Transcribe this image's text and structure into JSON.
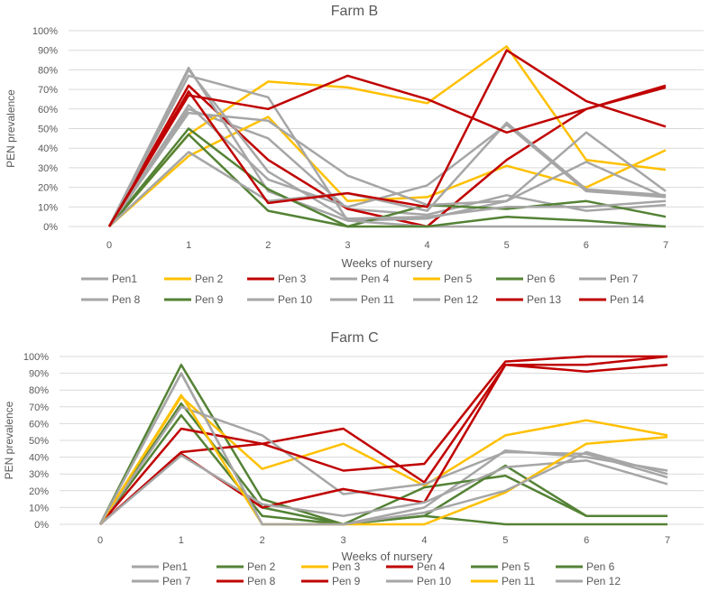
{
  "colors": {
    "grey": "#a6a6a6",
    "gold": "#ffc000",
    "red": "#c00000",
    "green": "#548235",
    "grid": "#d9d9d9",
    "text": "#595959"
  },
  "chart_data": [
    {
      "type": "line",
      "title": "Farm B",
      "xlabel": "Weeks of nursery",
      "ylabel": "PEN prevalence",
      "x": [
        0,
        1,
        2,
        3,
        4,
        5,
        6,
        7
      ],
      "ylim": [
        0,
        100
      ],
      "yticks": [
        "0%",
        "10%",
        "20%",
        "30%",
        "40%",
        "50%",
        "60%",
        "70%",
        "80%",
        "90%",
        "100%"
      ],
      "legend_position": "bottom",
      "legend_rows": [
        7,
        7
      ],
      "series": [
        {
          "name": "Pen1",
          "color": "grey",
          "values": [
            0,
            60,
            45,
            9,
            6,
            16,
            8,
            11
          ]
        },
        {
          "name": "Pen 2",
          "color": "gold",
          "values": [
            0,
            36,
            56,
            13,
            15,
            31,
            20,
            39
          ]
        },
        {
          "name": "Pen 3",
          "color": "red",
          "values": [
            0,
            72,
            34,
            9,
            0,
            34,
            60,
            72
          ]
        },
        {
          "name": "Pen 4",
          "color": "grey",
          "values": [
            0,
            81,
            18,
            3,
            4,
            13,
            33,
            15
          ]
        },
        {
          "name": "Pen 5",
          "color": "gold",
          "values": [
            0,
            47,
            74,
            71,
            63,
            92,
            34,
            29
          ]
        },
        {
          "name": "Pen 6",
          "color": "green",
          "values": [
            0,
            50,
            19,
            0,
            11,
            9,
            13,
            5
          ]
        },
        {
          "name": "Pen 7",
          "color": "grey",
          "values": [
            0,
            77,
            66,
            3,
            0,
            0,
            0,
            0
          ]
        },
        {
          "name": "Pen 8",
          "color": "grey",
          "values": [
            0,
            58,
            54,
            26,
            11,
            13,
            48,
            18
          ]
        },
        {
          "name": "Pen 9",
          "color": "green",
          "values": [
            0,
            47,
            8,
            0,
            0,
            5,
            3,
            0
          ]
        },
        {
          "name": "Pen 10",
          "color": "grey",
          "values": [
            0,
            38,
            13,
            17,
            8,
            53,
            19,
            16
          ]
        },
        {
          "name": "Pen 11",
          "color": "grey",
          "values": [
            0,
            62,
            24,
            10,
            21,
            52,
            18,
            15
          ]
        },
        {
          "name": "Pen 12",
          "color": "grey",
          "values": [
            0,
            80,
            28,
            4,
            5,
            10,
            10,
            13
          ]
        },
        {
          "name": "Pen 13",
          "color": "red",
          "values": [
            0,
            67,
            60,
            77,
            65,
            48,
            60,
            71
          ]
        },
        {
          "name": "Pen 14",
          "color": "red",
          "values": [
            0,
            69,
            12,
            17,
            10,
            90,
            64,
            51
          ]
        }
      ]
    },
    {
      "type": "line",
      "title": "Farm C",
      "xlabel": "Weeks of nursery",
      "ylabel": "PEN prevalence",
      "x": [
        0,
        1,
        2,
        3,
        4,
        5,
        6,
        7
      ],
      "ylim": [
        0,
        100
      ],
      "yticks": [
        "0%",
        "10%",
        "20%",
        "30%",
        "40%",
        "50%",
        "60%",
        "70%",
        "80%",
        "90%",
        "100%"
      ],
      "legend_position": "bottom",
      "legend_rows": [
        6,
        6
      ],
      "series": [
        {
          "name": "Pen1",
          "color": "grey",
          "values": [
            0,
            90,
            0,
            0,
            10,
            44,
            40,
            32
          ]
        },
        {
          "name": "Pen 2",
          "color": "green",
          "values": [
            0,
            95,
            15,
            0,
            5,
            35,
            5,
            5
          ]
        },
        {
          "name": "Pen 3",
          "color": "gold",
          "values": [
            0,
            76,
            33,
            48,
            23,
            53,
            62,
            53
          ]
        },
        {
          "name": "Pen 4",
          "color": "red",
          "values": [
            0,
            43,
            48,
            57,
            25,
            95,
            95,
            100
          ]
        },
        {
          "name": "Pen 5",
          "color": "green",
          "values": [
            0,
            65,
            5,
            0,
            22,
            29,
            5,
            5
          ]
        },
        {
          "name": "Pen 6",
          "color": "green",
          "values": [
            0,
            72,
            10,
            0,
            5,
            0,
            0,
            0
          ]
        },
        {
          "name": "Pen 7",
          "color": "grey",
          "values": [
            0,
            70,
            53,
            18,
            24,
            43,
            42,
            28
          ]
        },
        {
          "name": "Pen 8",
          "color": "red",
          "values": [
            0,
            42,
            10,
            21,
            13,
            95,
            91,
            95
          ]
        },
        {
          "name": "Pen 9",
          "color": "red",
          "values": [
            0,
            57,
            48,
            32,
            36,
            97,
            100,
            100
          ]
        },
        {
          "name": "Pen 10",
          "color": "grey",
          "values": [
            0,
            41,
            12,
            5,
            13,
            34,
            38,
            24
          ]
        },
        {
          "name": "Pen 11",
          "color": "gold",
          "values": [
            0,
            77,
            0,
            0,
            0,
            19,
            48,
            52
          ]
        },
        {
          "name": "Pen 12",
          "color": "grey",
          "values": [
            0,
            90,
            0,
            0,
            7,
            20,
            43,
            30
          ]
        }
      ]
    }
  ]
}
